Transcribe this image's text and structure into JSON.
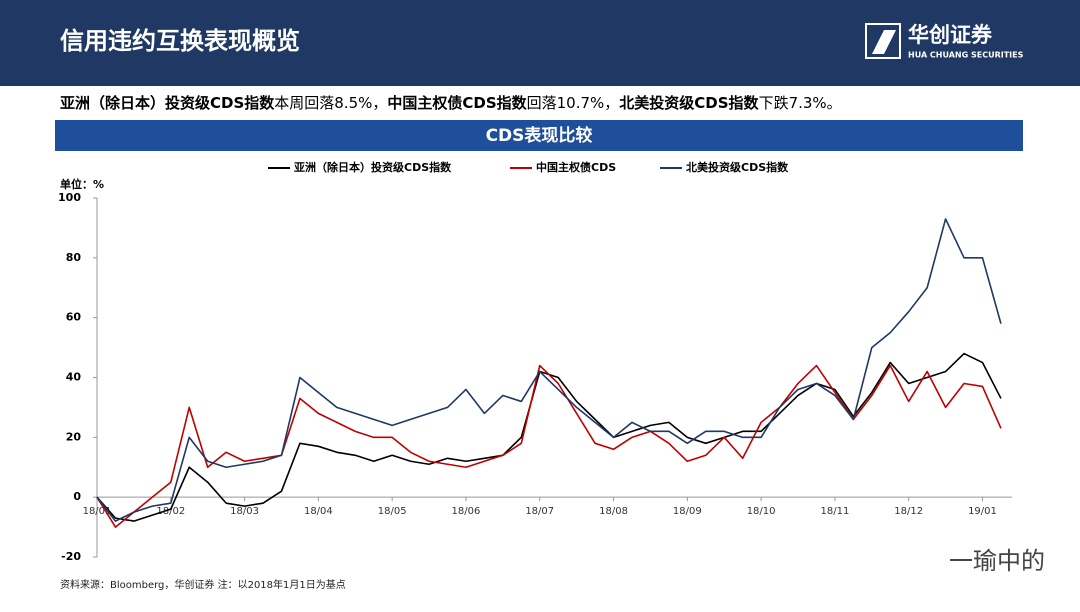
{
  "header": {
    "title": "信用违约互换表现概览",
    "logo_cn": "华创证券",
    "logo_en": "HUA CHUANG SECURITIES"
  },
  "summary": [
    {
      "text": "亚洲（除日本）投资级CDS指数",
      "bold": true
    },
    {
      "text": "本周回落8.5%，",
      "bold": false
    },
    {
      "text": "中国主权债CDS指数",
      "bold": true
    },
    {
      "text": "回落10.7%，",
      "bold": false
    },
    {
      "text": "北美投资级CDS指数",
      "bold": true
    },
    {
      "text": "下跌7.3%。",
      "bold": false
    }
  ],
  "banner": "CDS表现比较",
  "source": "资料来源：Bloomberg，华创证券   注：以2018年1月1日为基点",
  "watermark": "一瑜中的",
  "chart_data": {
    "type": "line",
    "unit_label": "单位：%",
    "x": [
      0,
      0.25,
      0.5,
      0.75,
      1,
      1.25,
      1.5,
      1.75,
      2,
      2.25,
      2.5,
      2.75,
      3,
      3.25,
      3.5,
      3.75,
      4,
      4.25,
      4.5,
      4.75,
      5,
      5.25,
      5.5,
      5.75,
      6,
      6.25,
      6.5,
      6.75,
      7,
      7.25,
      7.5,
      7.75,
      8,
      8.25,
      8.5,
      8.75,
      9,
      9.25,
      9.5,
      9.75,
      10,
      10.25,
      10.5,
      10.75,
      11,
      11.25,
      11.5,
      11.75,
      12,
      12.25
    ],
    "series": [
      {
        "name": "亚洲（除日本）投资级CDS指数",
        "color": "#000000",
        "values": [
          0,
          -7,
          -8,
          -6,
          -4,
          10,
          5,
          -2,
          -3,
          -2,
          2,
          18,
          17,
          15,
          14,
          12,
          14,
          12,
          11,
          13,
          12,
          13,
          14,
          20,
          42,
          40,
          32,
          26,
          20,
          22,
          24,
          25,
          20,
          18,
          20,
          22,
          22,
          28,
          34,
          38,
          36,
          27,
          35,
          45,
          38,
          40,
          42,
          48,
          45,
          33
        ]
      },
      {
        "name": "中国主权债CDS",
        "color": "#c00000",
        "values": [
          0,
          -10,
          -5,
          0,
          5,
          30,
          10,
          15,
          12,
          13,
          14,
          33,
          28,
          25,
          22,
          20,
          20,
          15,
          12,
          11,
          10,
          12,
          14,
          18,
          44,
          38,
          28,
          18,
          16,
          20,
          22,
          18,
          12,
          14,
          20,
          13,
          25,
          30,
          38,
          44,
          35,
          26,
          34,
          44,
          32,
          42,
          30,
          38,
          37,
          23
        ]
      },
      {
        "name": "北美投资级CDS指数",
        "color": "#1f3864",
        "values": [
          0,
          -8,
          -5,
          -3,
          -2,
          20,
          12,
          10,
          11,
          12,
          14,
          40,
          35,
          30,
          28,
          26,
          24,
          26,
          28,
          30,
          36,
          28,
          34,
          32,
          42,
          36,
          30,
          25,
          20,
          25,
          22,
          22,
          18,
          22,
          22,
          20,
          20,
          30,
          36,
          38,
          34,
          26,
          50,
          55,
          62,
          70,
          93,
          80,
          80,
          58
        ]
      }
    ],
    "xlim": [
      0,
      12.4
    ],
    "xticks": [
      {
        "value": 0,
        "label": "18/01"
      },
      {
        "value": 1,
        "label": "18/02"
      },
      {
        "value": 2,
        "label": "18/03"
      },
      {
        "value": 3,
        "label": "18/04"
      },
      {
        "value": 4,
        "label": "18/05"
      },
      {
        "value": 5,
        "label": "18/06"
      },
      {
        "value": 6,
        "label": "18/07"
      },
      {
        "value": 7,
        "label": "18/08"
      },
      {
        "value": 8,
        "label": "18/09"
      },
      {
        "value": 9,
        "label": "18/10"
      },
      {
        "value": 10,
        "label": "18/11"
      },
      {
        "value": 11,
        "label": "18/12"
      },
      {
        "value": 12,
        "label": "19/01"
      }
    ],
    "ylim": [
      -20,
      100
    ],
    "yticks": [
      -20,
      0,
      20,
      40,
      60,
      80,
      100
    ],
    "grid": false
  }
}
